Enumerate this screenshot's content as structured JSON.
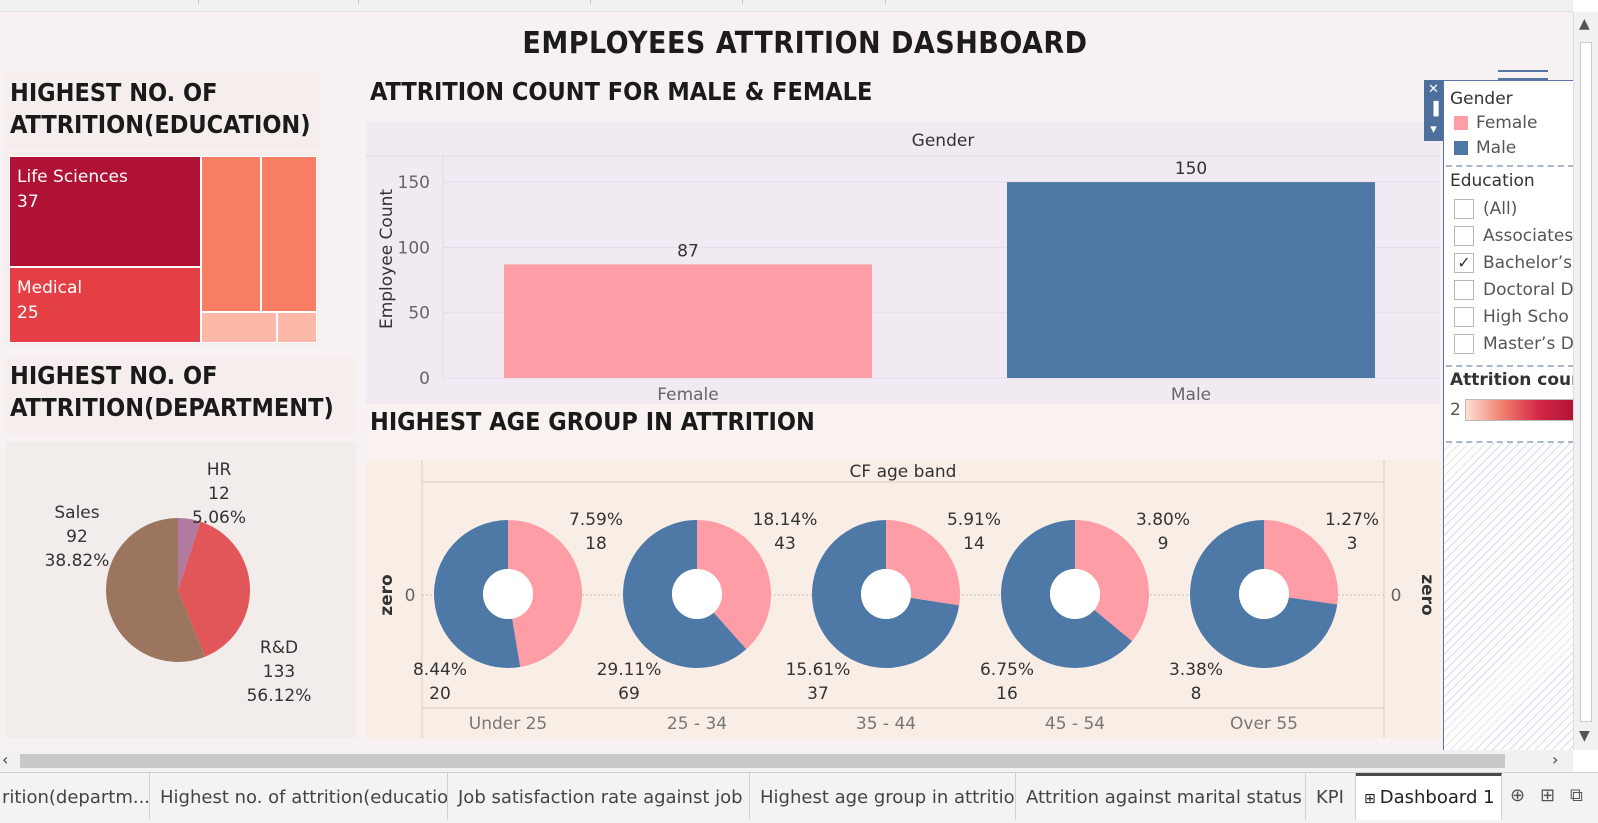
{
  "dashboard": {
    "title": "EMPLOYEES ATTRITION DASHBOARD"
  },
  "education_panel": {
    "title_line1": "HIGHEST NO. OF",
    "title_line2": "ATTRITION(EDUCATION)",
    "cells": [
      {
        "label": "Life Sciences",
        "value": "37",
        "color": "#b01236"
      },
      {
        "label": "Medical",
        "value": "25",
        "color": "#e43f45"
      },
      {
        "label": "",
        "value": "",
        "color": "#f77d63"
      },
      {
        "label": "",
        "value": "",
        "color": "#f77d63"
      },
      {
        "label": "",
        "value": "",
        "color": "#fdb8a8"
      },
      {
        "label": "",
        "value": "",
        "color": "#fdb8a8"
      }
    ]
  },
  "department_panel": {
    "title_line1": "HIGHEST NO. OF",
    "title_line2": "ATTRITION(DEPARTMENT)",
    "labels": {
      "hr": {
        "name": "HR",
        "count": "12",
        "pct": "5.06%"
      },
      "sales": {
        "name": "Sales",
        "count": "92",
        "pct": "38.82%"
      },
      "rd": {
        "name": "R&D",
        "count": "133",
        "pct": "56.12%"
      }
    }
  },
  "gender_panel": {
    "title": "ATTRITION COUNT FOR MALE & FEMALE",
    "header": "Gender",
    "ylabel": "Employee Count",
    "yticks": [
      "0",
      "50",
      "100",
      "150"
    ],
    "bar_labels": {
      "female": "87",
      "male": "150"
    },
    "category_labels": {
      "female": "Female",
      "male": "Male"
    }
  },
  "age_panel": {
    "title": "HIGHEST AGE GROUP  IN ATTRITION",
    "header": "CF age band",
    "axis_label_left": "zero",
    "axis_label_right": "zero",
    "zero_left": "0",
    "zero_right": "0",
    "groups": [
      {
        "band": "Under 25",
        "female_pct": "7.59%",
        "female_count": "18",
        "male_pct": "8.44%",
        "male_count": "20"
      },
      {
        "band": "25 - 34",
        "female_pct": "18.14%",
        "female_count": "43",
        "male_pct": "29.11%",
        "male_count": "69"
      },
      {
        "band": "35 - 44",
        "female_pct": "5.91%",
        "female_count": "14",
        "male_pct": "15.61%",
        "male_count": "37"
      },
      {
        "band": "45 - 54",
        "female_pct": "3.80%",
        "female_count": "9",
        "male_pct": "6.75%",
        "male_count": "16"
      },
      {
        "band": "Over 55",
        "female_pct": "1.27%",
        "female_count": "3",
        "male_pct": "3.38%",
        "male_count": "8"
      }
    ]
  },
  "legend": {
    "gender_title": "Gender",
    "gender_items": [
      {
        "label": "Female",
        "color": "#ff9da7"
      },
      {
        "label": "Male",
        "color": "#4e79a7"
      }
    ],
    "education_title": "Education",
    "education_items": [
      {
        "label": "(All)",
        "checked": false
      },
      {
        "label": "Associates",
        "checked": false
      },
      {
        "label": "Bachelor’s",
        "checked": true
      },
      {
        "label": "Doctoral D",
        "checked": false
      },
      {
        "label": "High Scho",
        "checked": false
      },
      {
        "label": "Master’s D",
        "checked": false
      }
    ],
    "attrition_title": "Attrition count",
    "attrition_min": "2",
    "check_mark": "✓"
  },
  "tabs": [
    {
      "label": "rition(departm..."
    },
    {
      "label": "Highest no. of attrition(education)"
    },
    {
      "label": "Job satisfaction rate against job ..."
    },
    {
      "label": "Highest age group in attrition"
    },
    {
      "label": "Attrition against marital status"
    },
    {
      "label": "KPI"
    },
    {
      "label": "Dashboard 1",
      "active": true
    }
  ],
  "chart_data": [
    {
      "type": "bar",
      "title": "ATTRITION COUNT FOR MALE & FEMALE",
      "categories": [
        "Female",
        "Male"
      ],
      "values": [
        87,
        150
      ],
      "colors": [
        "#ff9da7",
        "#4e79a7"
      ],
      "ylabel": "Employee Count",
      "ylim": [
        0,
        170
      ],
      "grid": true
    },
    {
      "type": "pie",
      "title": "HIGHEST NO. OF ATTRITION(DEPARTMENT)",
      "categories": [
        "HR",
        "Sales",
        "R&D"
      ],
      "values": [
        12,
        92,
        133
      ],
      "percents": [
        5.06,
        38.82,
        56.12
      ],
      "colors": [
        "#b07aa1",
        "#e15759",
        "#9c755f"
      ]
    },
    {
      "type": "table",
      "title": "HIGHEST NO. OF ATTRITION(EDUCATION)",
      "categories": [
        "Life Sciences",
        "Medical"
      ],
      "values": [
        37,
        25
      ]
    },
    {
      "type": "pie",
      "title": "HIGHEST AGE GROUP  IN ATTRITION",
      "categories": [
        "Under 25",
        "25 - 34",
        "35 - 44",
        "45 - 54",
        "Over 55"
      ],
      "series": [
        {
          "name": "Female",
          "values": [
            18,
            43,
            14,
            9,
            3
          ],
          "percents": [
            7.59,
            18.14,
            5.91,
            3.8,
            1.27
          ]
        },
        {
          "name": "Male",
          "values": [
            20,
            69,
            37,
            16,
            8
          ],
          "percents": [
            8.44,
            29.11,
            15.61,
            6.75,
            3.38
          ]
        }
      ],
      "colors": [
        "#ff9da7",
        "#4e79a7"
      ]
    }
  ]
}
